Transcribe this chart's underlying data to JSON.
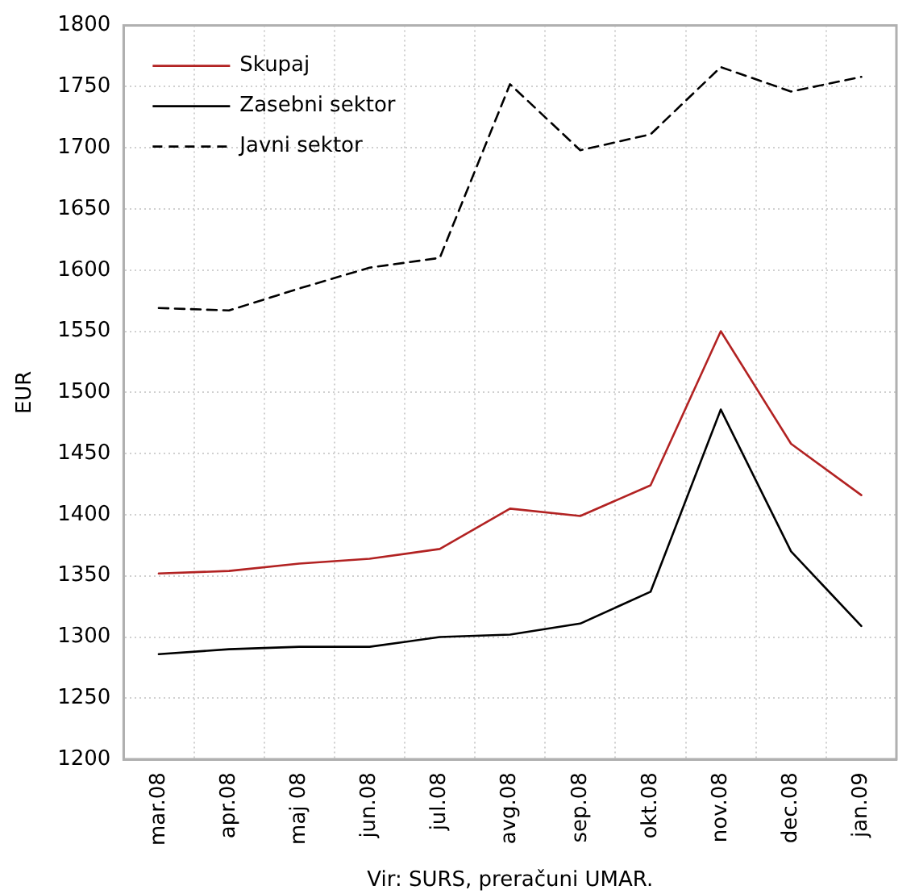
{
  "chart_data": {
    "type": "line",
    "ylabel": "EUR",
    "annotations": [
      "Vir: SURS, preračuni UMAR."
    ],
    "categories": [
      "mar.08",
      "apr.08",
      "maj 08",
      "jun.08",
      "jul.08",
      "avg.08",
      "sep.08",
      "okt.08",
      "nov.08",
      "dec.08",
      "jan.09"
    ],
    "series": [
      {
        "name": "Skupaj",
        "color": "#b22222",
        "line_style": "solid",
        "values": [
          1352,
          1354,
          1360,
          1364,
          1372,
          1405,
          1399,
          1424,
          1550,
          1458,
          1416
        ]
      },
      {
        "name": "Zasebni sektor",
        "color": "#000000",
        "line_style": "solid",
        "values": [
          1286,
          1290,
          1292,
          1292,
          1300,
          1302,
          1311,
          1337,
          1486,
          1370,
          1309
        ]
      },
      {
        "name": "Javni sektor",
        "color": "#000000",
        "line_style": "dashed",
        "values": [
          1569,
          1567,
          1585,
          1602,
          1610,
          1752,
          1698,
          1711,
          1766,
          1746,
          1758
        ]
      }
    ],
    "ylim": [
      1200,
      1800
    ],
    "yticks": [
      1200,
      1250,
      1300,
      1350,
      1400,
      1450,
      1500,
      1550,
      1600,
      1650,
      1700,
      1750,
      1800
    ],
    "grid": true,
    "legend": "top left",
    "marker": "none"
  }
}
